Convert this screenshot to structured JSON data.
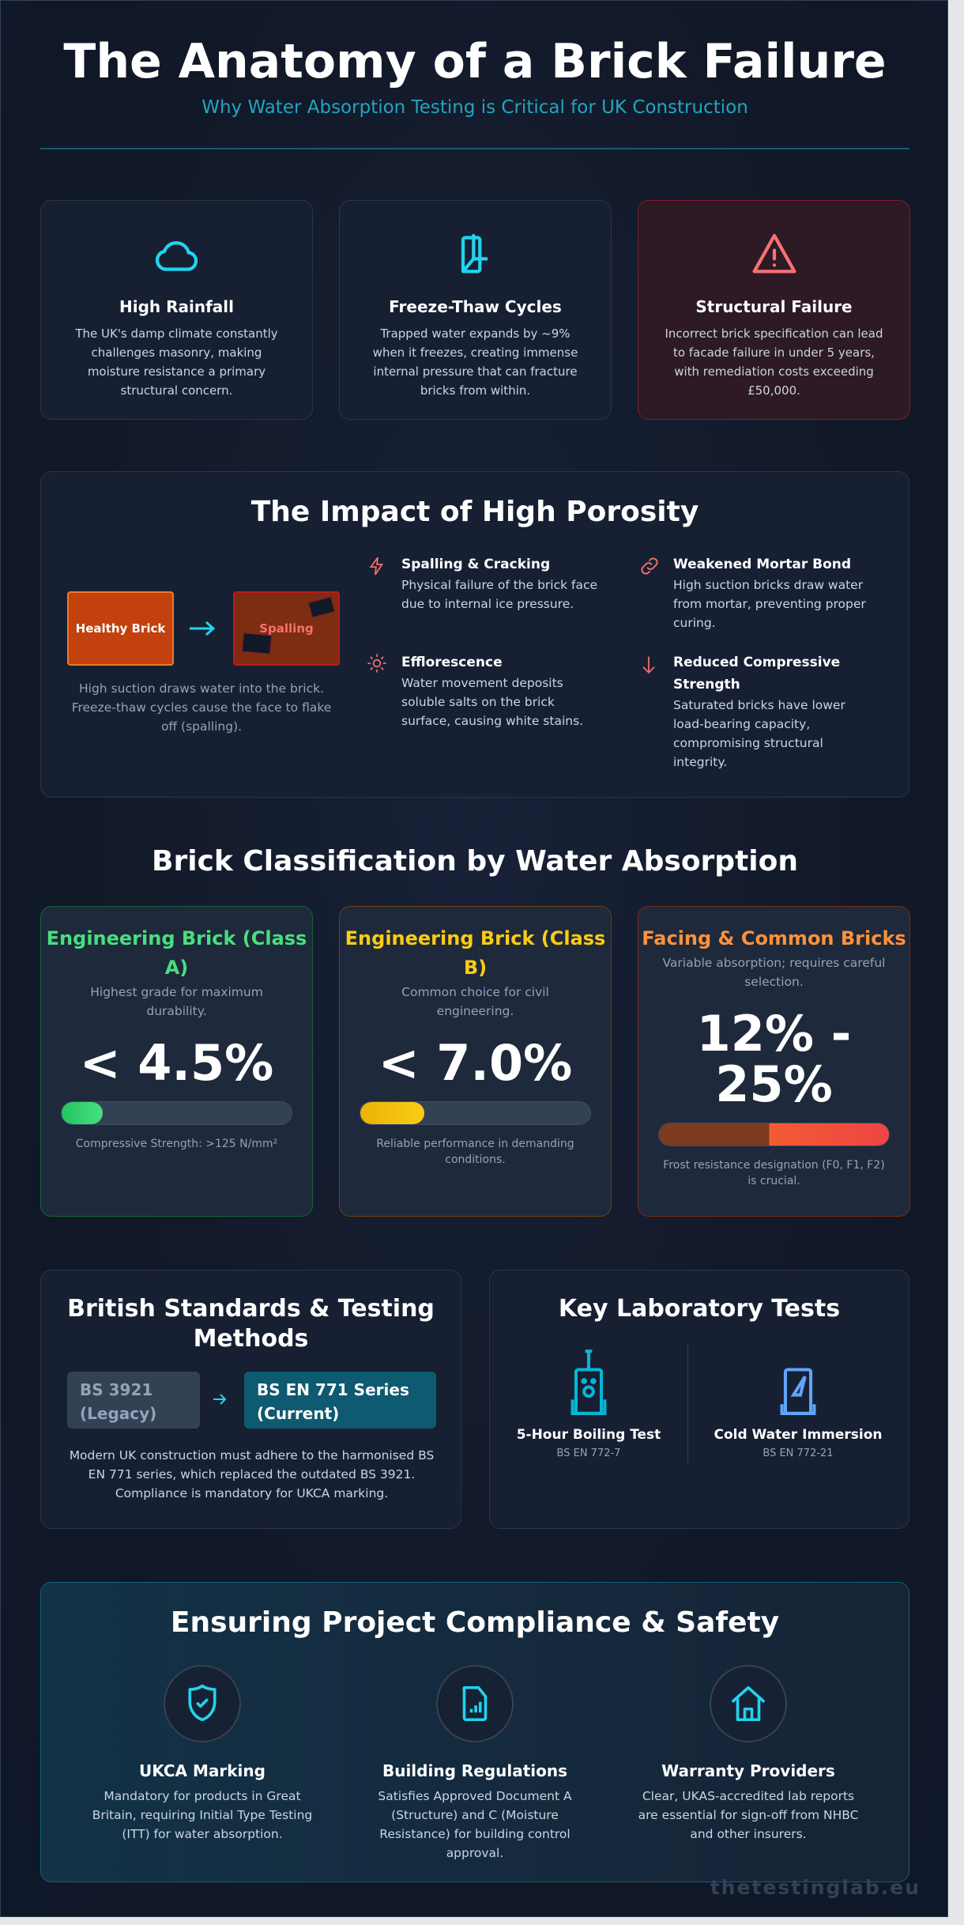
{
  "header": {
    "title": "The Anatomy of a Brick Failure",
    "subtitle": "Why Water Absorption Testing is Critical for UK Construction"
  },
  "risk_cards": [
    {
      "icon": "cloud-icon",
      "title": "High Rainfall",
      "text": "The UK's damp climate constantly challenges masonry, making moisture resistance a primary structural concern."
    },
    {
      "icon": "freeze-thaw-icon",
      "title": "Freeze-Thaw Cycles",
      "text": "Trapped water expands by ~9% when it freezes, creating immense internal pressure that can fracture bricks from within."
    },
    {
      "icon": "warning-triangle-icon",
      "title": "Structural Failure",
      "text": "Incorrect brick specification can lead to facade failure in under 5 years, with remediation costs exceeding £50,000."
    }
  ],
  "porosity": {
    "title": "The Impact of High Porosity",
    "healthy_label": "Healthy Brick",
    "spalling_label": "Spalling",
    "caption": "High suction draws water into the brick. Freeze-thaw cycles cause the face to flake off (spalling).",
    "effects": [
      {
        "icon": "lightning-icon",
        "title": "Spalling & Cracking",
        "text": "Physical failure of the brick face due to internal ice pressure."
      },
      {
        "icon": "link-icon",
        "title": "Weakened Mortar Bond",
        "text": "High suction bricks draw water from mortar, preventing proper curing."
      },
      {
        "icon": "sun-icon",
        "title": "Efflorescence",
        "text": "Water movement deposits soluble salts on the brick surface, causing white stains."
      },
      {
        "icon": "arrow-down-icon",
        "title": "Reduced Compressive Strength",
        "text": "Saturated bricks have lower load-bearing capacity, compromising structural integrity."
      }
    ]
  },
  "classification": {
    "title": "Brick Classification by Water Absorption",
    "cards": [
      {
        "title": "Engineering Brick (Class A)",
        "desc": "Highest grade for maximum durability.",
        "value": "< 4.5%",
        "fill_percent": 18,
        "note": "Compressive Strength: >125 N/mm²",
        "color": "#4ade80"
      },
      {
        "title": "Engineering Brick (Class B)",
        "desc": "Common choice for civil engineering.",
        "value": "< 7.0%",
        "fill_percent": 28,
        "note": "Reliable performance in demanding conditions.",
        "color": "#facc15"
      },
      {
        "title": "Facing & Common Bricks",
        "desc": "Variable absorption; requires careful selection.",
        "value": "12% - 25%",
        "fill_percent": 100,
        "note": "Frost resistance designation (F0, F1, F2) is crucial.",
        "color": "#fb923c"
      }
    ]
  },
  "standards": {
    "title": "British Standards & Testing Methods",
    "legacy": "BS 3921 (Legacy)",
    "current": "BS EN 771 Series (Current)",
    "text": "Modern UK construction must adhere to the harmonised BS EN 771 series, which replaced the outdated BS 3921. Compliance is mandatory for UKCA marking."
  },
  "lab_tests": {
    "title": "Key Laboratory Tests",
    "tests": [
      {
        "icon": "boiling-tank-icon",
        "name": "5-Hour Boiling Test",
        "code": "BS EN 772-7"
      },
      {
        "icon": "immersion-tank-icon",
        "name": "Cold Water Immersion",
        "code": "BS EN 772-21"
      }
    ]
  },
  "compliance": {
    "title": "Ensuring Project Compliance & Safety",
    "items": [
      {
        "icon": "shield-check-icon",
        "title": "UKCA Marking",
        "text": "Mandatory for products in Great Britain, requiring Initial Type Testing (ITT) for water absorption."
      },
      {
        "icon": "document-chart-icon",
        "title": "Building Regulations",
        "text": "Satisfies Approved Document A (Structure) and C (Moisture Resistance) for building control approval."
      },
      {
        "icon": "house-icon",
        "title": "Warranty Providers",
        "text": "Clear, UKAS-accredited lab reports are essential for sign-off from NHBC and other insurers."
      }
    ]
  },
  "watermark": "thetestinglab.eu",
  "colors": {
    "accent": "#22d3ee",
    "danger": "#f87171"
  }
}
